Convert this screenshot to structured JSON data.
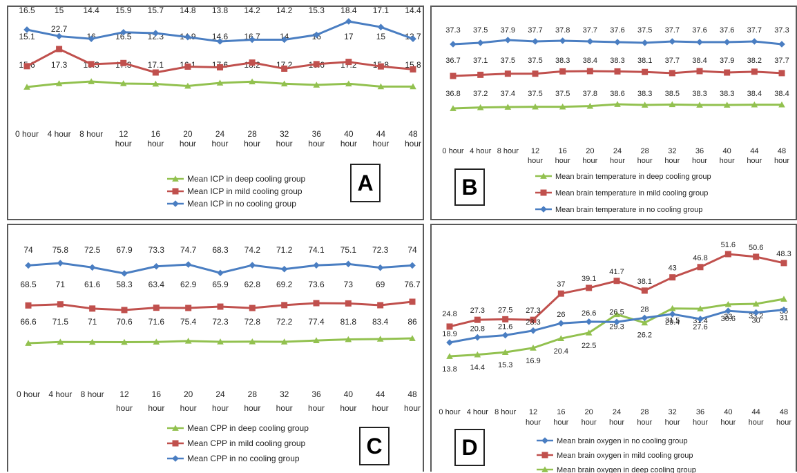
{
  "colors": {
    "deep": "#92c14f",
    "mild": "#c0504d",
    "none": "#4a7ec2"
  },
  "chart_data": [
    {
      "type": "line",
      "panel": "A",
      "x": [
        "0 hour",
        "4 hour",
        "8 hour",
        "12 hour",
        "16 hour",
        "20 hour",
        "24 hour",
        "28 hour",
        "32 hour",
        "36 hour",
        "40 hour",
        "44 hour",
        "48 hour"
      ],
      "series": [
        {
          "key": "none",
          "name": "Mean ICP in no cooling group",
          "values": [
            16.5,
            15,
            14.4,
            15.9,
            15.7,
            14.8,
            13.8,
            14.2,
            14.2,
            15.3,
            18.4,
            17.1,
            14.4
          ]
        },
        {
          "key": "mild",
          "name": "Mean ICP in mild cooling group",
          "values": [
            15.1,
            22.7,
            16,
            16.5,
            12.3,
            14.9,
            14.6,
            16.7,
            14,
            16,
            17,
            15,
            13.7
          ]
        },
        {
          "key": "deep",
          "name": "Mean ICP in deep cooling group",
          "values": [
            15.6,
            17.3,
            18.3,
            17.3,
            17.1,
            16.1,
            17.6,
            18.2,
            17.2,
            16.6,
            17.2,
            15.8,
            15.8
          ]
        }
      ],
      "legend_order": [
        "deep",
        "mild",
        "none"
      ],
      "grid": false,
      "legend_position": "bottom",
      "panel_label": "A"
    },
    {
      "type": "line",
      "panel": "B",
      "x": [
        "0 hour",
        "4 hour",
        "8 hour",
        "12 hour",
        "16 hour",
        "20 hour",
        "24 hour",
        "28 hour",
        "32 hour",
        "36 hour",
        "40 hour",
        "44 hour",
        "48 hour"
      ],
      "series": [
        {
          "key": "none",
          "name": "Mean brain temperature in no cooling group",
          "values": [
            37.3,
            37.5,
            37.9,
            37.7,
            37.8,
            37.7,
            37.6,
            37.5,
            37.7,
            37.6,
            37.6,
            37.7,
            37.3
          ]
        },
        {
          "key": "mild",
          "name": "Mean brain temperature in mild cooling group",
          "values": [
            36.7,
            37.1,
            37.5,
            37.5,
            38.3,
            38.4,
            38.3,
            38.1,
            37.7,
            38.4,
            37.9,
            38.2,
            37.7
          ]
        },
        {
          "key": "deep",
          "name": "Mean brain temperature in deep cooling group",
          "values": [
            36.8,
            37.2,
            37.4,
            37.5,
            37.5,
            37.8,
            38.6,
            38.3,
            38.5,
            38.3,
            38.3,
            38.4,
            38.4
          ]
        }
      ],
      "legend_order": [
        "deep",
        "mild",
        "none"
      ],
      "grid": false,
      "legend_position": "bottom",
      "panel_label": "B"
    },
    {
      "type": "line",
      "panel": "C",
      "x": [
        "0 hour",
        "4 hour",
        "8 hour",
        "12 hour",
        "16 hour",
        "20 hour",
        "24 hour",
        "28 hour",
        "32 hour",
        "36 hour",
        "40 hour",
        "44 hour",
        "48 hour"
      ],
      "series": [
        {
          "key": "none",
          "name": "Mean CPP in no cooling group",
          "values": [
            74,
            75.8,
            72.5,
            67.9,
            73.3,
            74.7,
            68.3,
            74.2,
            71.2,
            74.1,
            75.1,
            72.3,
            74
          ]
        },
        {
          "key": "mild",
          "name": "Mean CPP in mild cooling group",
          "values": [
            68.5,
            71,
            61.6,
            58.3,
            63.4,
            62.9,
            65.9,
            62.8,
            69.2,
            73.6,
            73,
            69,
            76.7
          ]
        },
        {
          "key": "deep",
          "name": "Mean CPP in deep cooling group",
          "values": [
            66.6,
            71.5,
            71,
            70.6,
            71.6,
            75.4,
            72.3,
            72.8,
            72.2,
            77.4,
            81.8,
            83.4,
            86
          ]
        }
      ],
      "legend_order": [
        "deep",
        "mild",
        "none"
      ],
      "grid": false,
      "legend_position": "bottom",
      "panel_label": "C"
    },
    {
      "type": "line",
      "panel": "D",
      "x": [
        "0 hour",
        "4 hour",
        "8 hour",
        "12 hour",
        "16 hour",
        "20 hour",
        "24 hour",
        "28 hour",
        "32 hour",
        "36 hour",
        "40 hour",
        "44 hour",
        "48 hour"
      ],
      "series": [
        {
          "key": "none",
          "name": "Mean brain oxygen in no cooling group",
          "values": [
            18.9,
            20.8,
            21.6,
            23.3,
            26,
            26.6,
            26.5,
            28,
            29.4,
            27.6,
            30.6,
            30,
            31
          ]
        },
        {
          "key": "mild",
          "name": "Mean brain oxygen in mild cooling group",
          "values": [
            24.8,
            27.3,
            27.5,
            27.3,
            37,
            39.1,
            41.7,
            38.1,
            43,
            46.8,
            51.6,
            50.6,
            48.3
          ]
        },
        {
          "key": "deep",
          "name": "Mean brain oxygen in deep cooling group",
          "values": [
            13.8,
            14.4,
            15.3,
            16.9,
            20.4,
            22.5,
            29.3,
            26.2,
            31.5,
            31.4,
            33,
            33.2,
            35
          ]
        }
      ],
      "legend_order": [
        "none",
        "mild",
        "deep"
      ],
      "grid": false,
      "legend_position": "bottom",
      "panel_label": "D"
    }
  ]
}
